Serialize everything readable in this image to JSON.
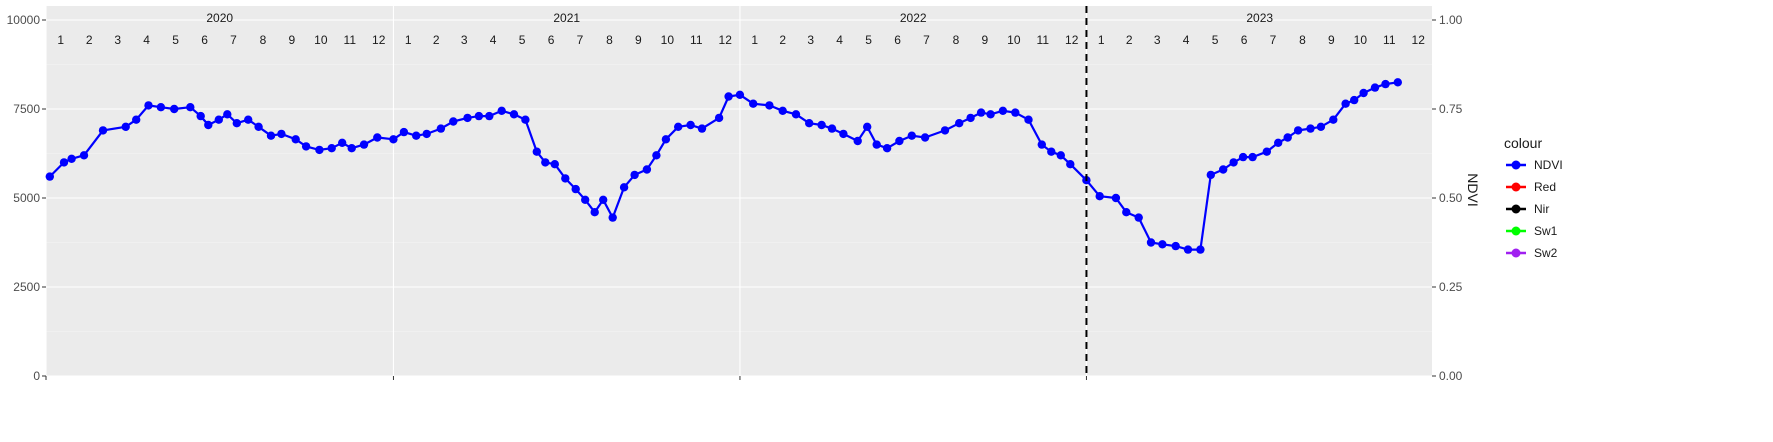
{
  "chart_data": {
    "type": "line",
    "x_range": [
      "2020-01-01",
      "2023-12-31"
    ],
    "ylim": [
      0,
      10000
    ],
    "y_ticks": [
      0,
      2500,
      5000,
      7500,
      10000
    ],
    "y_tick_labels": [
      "0",
      "2500",
      "5000",
      "7500",
      "10000"
    ],
    "y2_label": "NDVI",
    "y2_lim": [
      0,
      1
    ],
    "y2_ticks": [
      0,
      0.25,
      0.5,
      0.75,
      1.0
    ],
    "y2_tick_labels": [
      "0.00",
      "0.25",
      "0.50",
      "0.75",
      "1.00"
    ],
    "years": [
      "2020",
      "2021",
      "2022",
      "2023"
    ],
    "months": [
      "1",
      "2",
      "3",
      "4",
      "5",
      "6",
      "7",
      "8",
      "9",
      "10",
      "11",
      "12"
    ],
    "vline_date": "2023-01-01",
    "grid": true,
    "legend_position": "right",
    "legend_title": "colour",
    "series": [
      {
        "name": "NDVI",
        "color": "#0000ff",
        "axis": "right",
        "points": [
          [
            "2020-01-05",
            0.56
          ],
          [
            "2020-01-20",
            0.6
          ],
          [
            "2020-01-28",
            0.61
          ],
          [
            "2020-02-10",
            0.62
          ],
          [
            "2020-03-01",
            0.69
          ],
          [
            "2020-03-25",
            0.7
          ],
          [
            "2020-04-05",
            0.72
          ],
          [
            "2020-04-18",
            0.76
          ],
          [
            "2020-05-01",
            0.755
          ],
          [
            "2020-05-15",
            0.75
          ],
          [
            "2020-06-01",
            0.755
          ],
          [
            "2020-06-12",
            0.73
          ],
          [
            "2020-06-20",
            0.705
          ],
          [
            "2020-07-01",
            0.72
          ],
          [
            "2020-07-10",
            0.735
          ],
          [
            "2020-07-20",
            0.71
          ],
          [
            "2020-08-01",
            0.72
          ],
          [
            "2020-08-12",
            0.7
          ],
          [
            "2020-08-25",
            0.675
          ],
          [
            "2020-09-05",
            0.68
          ],
          [
            "2020-09-20",
            0.665
          ],
          [
            "2020-10-01",
            0.645
          ],
          [
            "2020-10-15",
            0.635
          ],
          [
            "2020-10-28",
            0.64
          ],
          [
            "2020-11-08",
            0.655
          ],
          [
            "2020-11-18",
            0.64
          ],
          [
            "2020-12-01",
            0.65
          ],
          [
            "2020-12-15",
            0.67
          ],
          [
            "2021-01-01",
            0.665
          ],
          [
            "2021-01-12",
            0.685
          ],
          [
            "2021-01-25",
            0.675
          ],
          [
            "2021-02-05",
            0.68
          ],
          [
            "2021-02-20",
            0.695
          ],
          [
            "2021-03-05",
            0.715
          ],
          [
            "2021-03-20",
            0.725
          ],
          [
            "2021-04-01",
            0.73
          ],
          [
            "2021-04-12",
            0.73
          ],
          [
            "2021-04-25",
            0.745
          ],
          [
            "2021-05-08",
            0.735
          ],
          [
            "2021-05-20",
            0.72
          ],
          [
            "2021-06-01",
            0.63
          ],
          [
            "2021-06-10",
            0.6
          ],
          [
            "2021-06-20",
            0.595
          ],
          [
            "2021-07-01",
            0.555
          ],
          [
            "2021-07-12",
            0.525
          ],
          [
            "2021-07-22",
            0.495
          ],
          [
            "2021-08-01",
            0.46
          ],
          [
            "2021-08-10",
            0.495
          ],
          [
            "2021-08-20",
            0.445
          ],
          [
            "2021-09-01",
            0.53
          ],
          [
            "2021-09-12",
            0.565
          ],
          [
            "2021-09-25",
            0.58
          ],
          [
            "2021-10-05",
            0.62
          ],
          [
            "2021-10-15",
            0.665
          ],
          [
            "2021-10-28",
            0.7
          ],
          [
            "2021-11-10",
            0.705
          ],
          [
            "2021-11-22",
            0.695
          ],
          [
            "2021-12-10",
            0.725
          ],
          [
            "2021-12-20",
            0.785
          ],
          [
            "2022-01-01",
            0.79
          ],
          [
            "2022-01-15",
            0.765
          ],
          [
            "2022-02-01",
            0.76
          ],
          [
            "2022-02-15",
            0.745
          ],
          [
            "2022-03-01",
            0.735
          ],
          [
            "2022-03-15",
            0.71
          ],
          [
            "2022-03-28",
            0.705
          ],
          [
            "2022-04-08",
            0.695
          ],
          [
            "2022-04-20",
            0.68
          ],
          [
            "2022-05-05",
            0.66
          ],
          [
            "2022-05-15",
            0.7
          ],
          [
            "2022-05-25",
            0.65
          ],
          [
            "2022-06-05",
            0.64
          ],
          [
            "2022-06-18",
            0.66
          ],
          [
            "2022-07-01",
            0.675
          ],
          [
            "2022-07-15",
            0.67
          ],
          [
            "2022-08-05",
            0.69
          ],
          [
            "2022-08-20",
            0.71
          ],
          [
            "2022-09-01",
            0.725
          ],
          [
            "2022-09-12",
            0.74
          ],
          [
            "2022-09-22",
            0.735
          ],
          [
            "2022-10-05",
            0.745
          ],
          [
            "2022-10-18",
            0.74
          ],
          [
            "2022-11-01",
            0.72
          ],
          [
            "2022-11-15",
            0.65
          ],
          [
            "2022-11-25",
            0.63
          ],
          [
            "2022-12-05",
            0.62
          ],
          [
            "2022-12-15",
            0.595
          ],
          [
            "2023-01-01",
            0.55
          ],
          [
            "2023-01-15",
            0.505
          ],
          [
            "2023-02-01",
            0.5
          ],
          [
            "2023-02-12",
            0.46
          ],
          [
            "2023-02-25",
            0.445
          ],
          [
            "2023-03-10",
            0.375
          ],
          [
            "2023-03-22",
            0.37
          ],
          [
            "2023-04-05",
            0.365
          ],
          [
            "2023-04-18",
            0.355
          ],
          [
            "2023-05-01",
            0.355
          ],
          [
            "2023-05-12",
            0.565
          ],
          [
            "2023-05-25",
            0.58
          ],
          [
            "2023-06-05",
            0.6
          ],
          [
            "2023-06-15",
            0.615
          ],
          [
            "2023-06-25",
            0.615
          ],
          [
            "2023-07-10",
            0.63
          ],
          [
            "2023-07-22",
            0.655
          ],
          [
            "2023-08-01",
            0.67
          ],
          [
            "2023-08-12",
            0.69
          ],
          [
            "2023-08-25",
            0.695
          ],
          [
            "2023-09-05",
            0.7
          ],
          [
            "2023-09-18",
            0.72
          ],
          [
            "2023-10-01",
            0.765
          ],
          [
            "2023-10-10",
            0.775
          ],
          [
            "2023-10-20",
            0.795
          ],
          [
            "2023-11-01",
            0.81
          ],
          [
            "2023-11-12",
            0.82
          ],
          [
            "2023-11-25",
            0.825
          ]
        ]
      }
    ]
  },
  "legend": {
    "title": "colour",
    "items": [
      {
        "label": "NDVI",
        "color": "#0000ff"
      },
      {
        "label": "Red",
        "color": "#ff0000"
      },
      {
        "label": "Nir",
        "color": "#000000"
      },
      {
        "label": "Sw1",
        "color": "#00ff00"
      },
      {
        "label": "Sw2",
        "color": "#a020f0"
      }
    ]
  }
}
